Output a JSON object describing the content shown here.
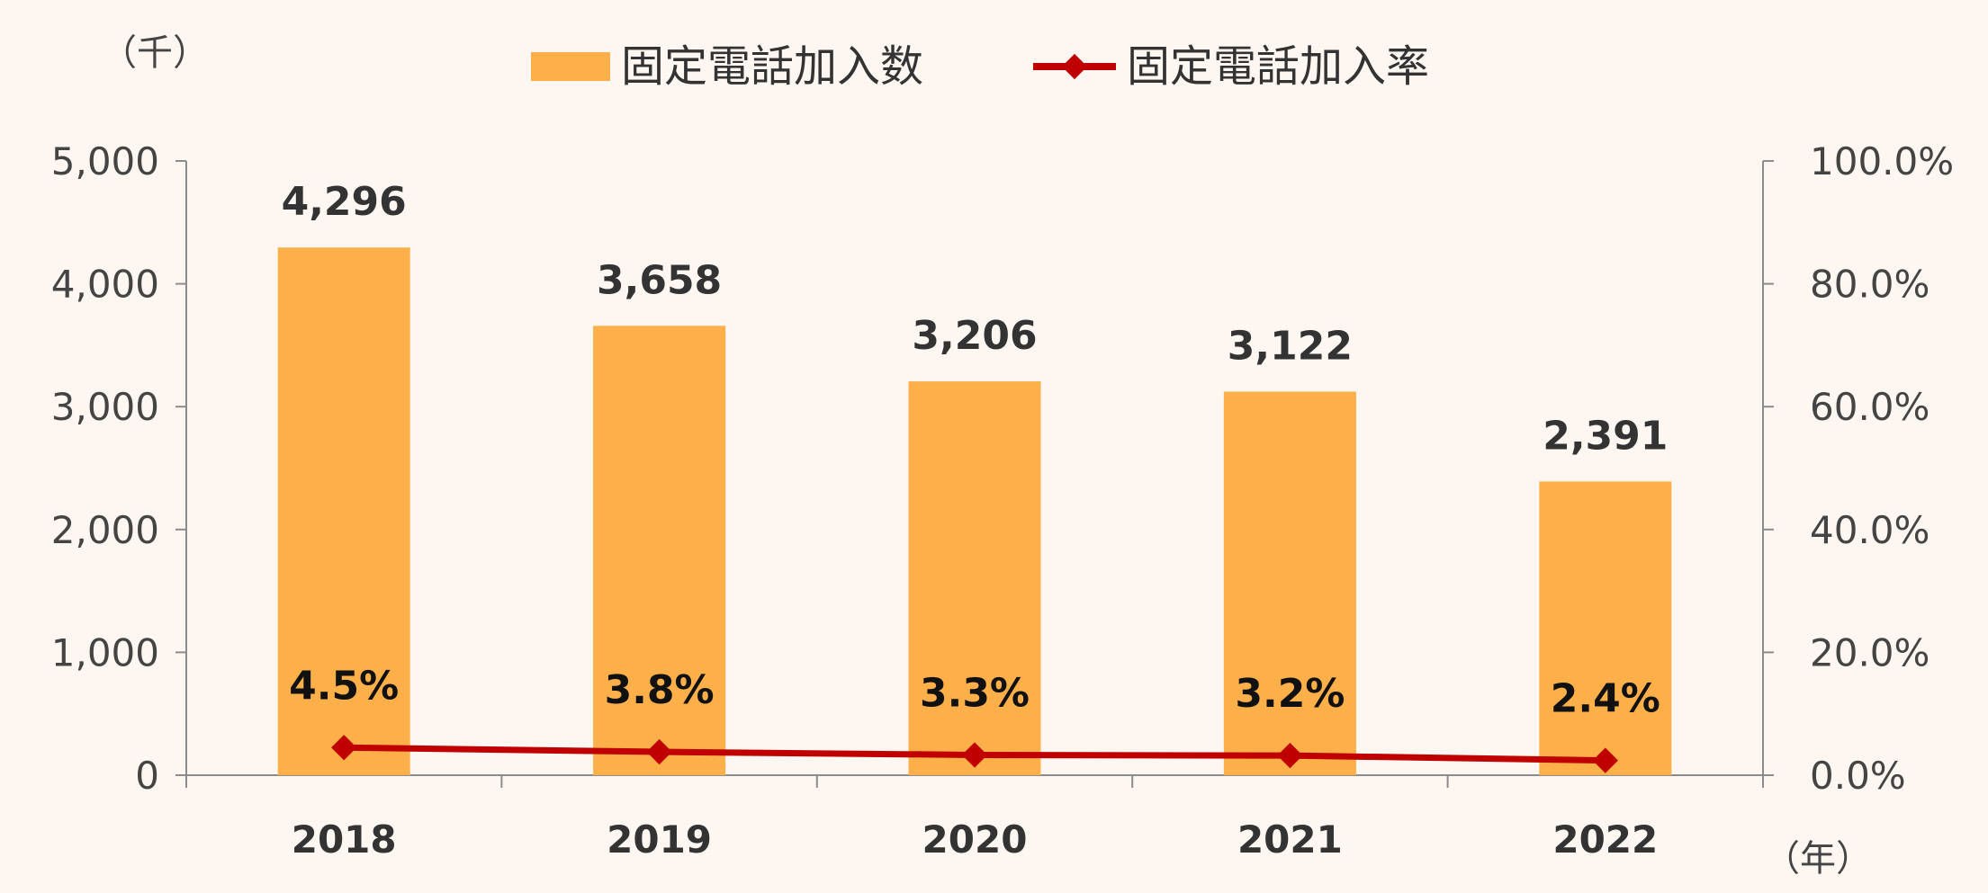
{
  "chart_data": {
    "type": "bar",
    "categories": [
      "2018",
      "2019",
      "2020",
      "2021",
      "2022"
    ],
    "series": [
      {
        "name": "固定電話加入数",
        "type": "bar",
        "axis": "left",
        "values": [
          4296,
          3658,
          3206,
          3122,
          2391
        ],
        "labels": [
          "4,296",
          "3,658",
          "3,206",
          "3,122",
          "2,391"
        ],
        "color": "#FDB04A"
      },
      {
        "name": "固定電話加入率",
        "type": "line",
        "axis": "right",
        "values": [
          4.5,
          3.8,
          3.3,
          3.2,
          2.4
        ],
        "labels": [
          "4.5%",
          "3.8%",
          "3.3%",
          "3.2%",
          "2.4%"
        ],
        "color": "#C00000"
      }
    ],
    "y_left": {
      "unit_label": "（千）",
      "min": 0,
      "max": 5000,
      "ticks": [
        0,
        1000,
        2000,
        3000,
        4000,
        5000
      ],
      "tick_labels": [
        "0",
        "1,000",
        "2,000",
        "3,000",
        "4,000",
        "5,000"
      ]
    },
    "y_right": {
      "min": 0,
      "max": 100,
      "ticks": [
        0,
        20,
        40,
        60,
        80,
        100
      ],
      "tick_labels": [
        "0.0%",
        "20.0%",
        "40.0%",
        "60.0%",
        "80.0%",
        "100.0%"
      ]
    },
    "x_unit_label": "（年）",
    "legend_position": "top-center",
    "grid": false
  }
}
